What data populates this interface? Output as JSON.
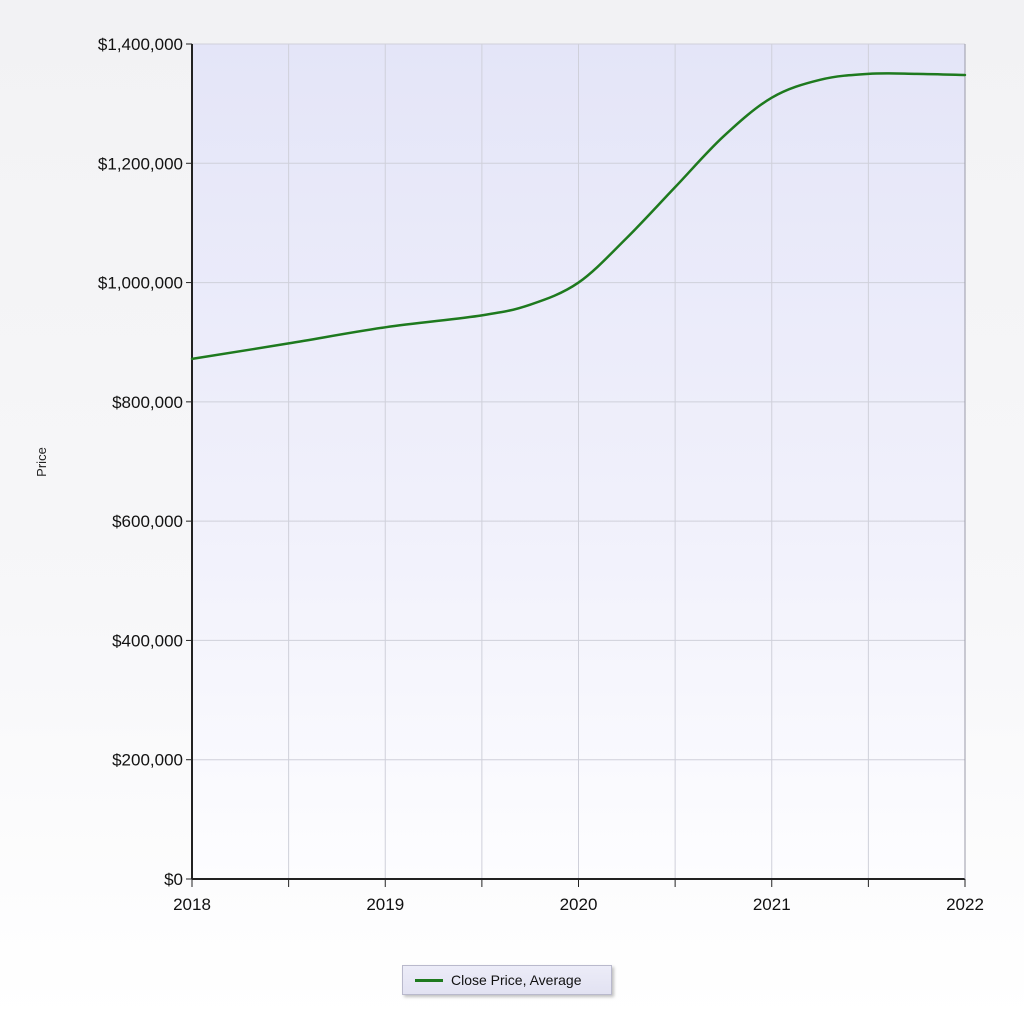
{
  "chart_data": {
    "type": "line",
    "title": "",
    "xlabel": "",
    "ylabel": "Price",
    "x_ticks": [
      "2018",
      "2019",
      "2020",
      "2021",
      "2022"
    ],
    "y_ticks": [
      "$0",
      "$200,000",
      "$400,000",
      "$600,000",
      "$800,000",
      "$1,000,000",
      "$1,200,000",
      "$1,400,000"
    ],
    "xlim": [
      2018,
      2022
    ],
    "ylim": [
      0,
      1400000
    ],
    "grid": true,
    "legend_position": "bottom-center",
    "series": [
      {
        "name": "Close Price, Average",
        "color": "#1e7a1e",
        "x": [
          2018,
          2018.5,
          2019,
          2019.5,
          2019.75,
          2020,
          2020.25,
          2020.5,
          2020.75,
          2021,
          2021.25,
          2021.5,
          2021.75,
          2022
        ],
        "y": [
          872000,
          898000,
          925000,
          945000,
          963000,
          1000000,
          1075000,
          1160000,
          1245000,
          1310000,
          1340000,
          1350000,
          1350000,
          1348000
        ]
      }
    ]
  }
}
